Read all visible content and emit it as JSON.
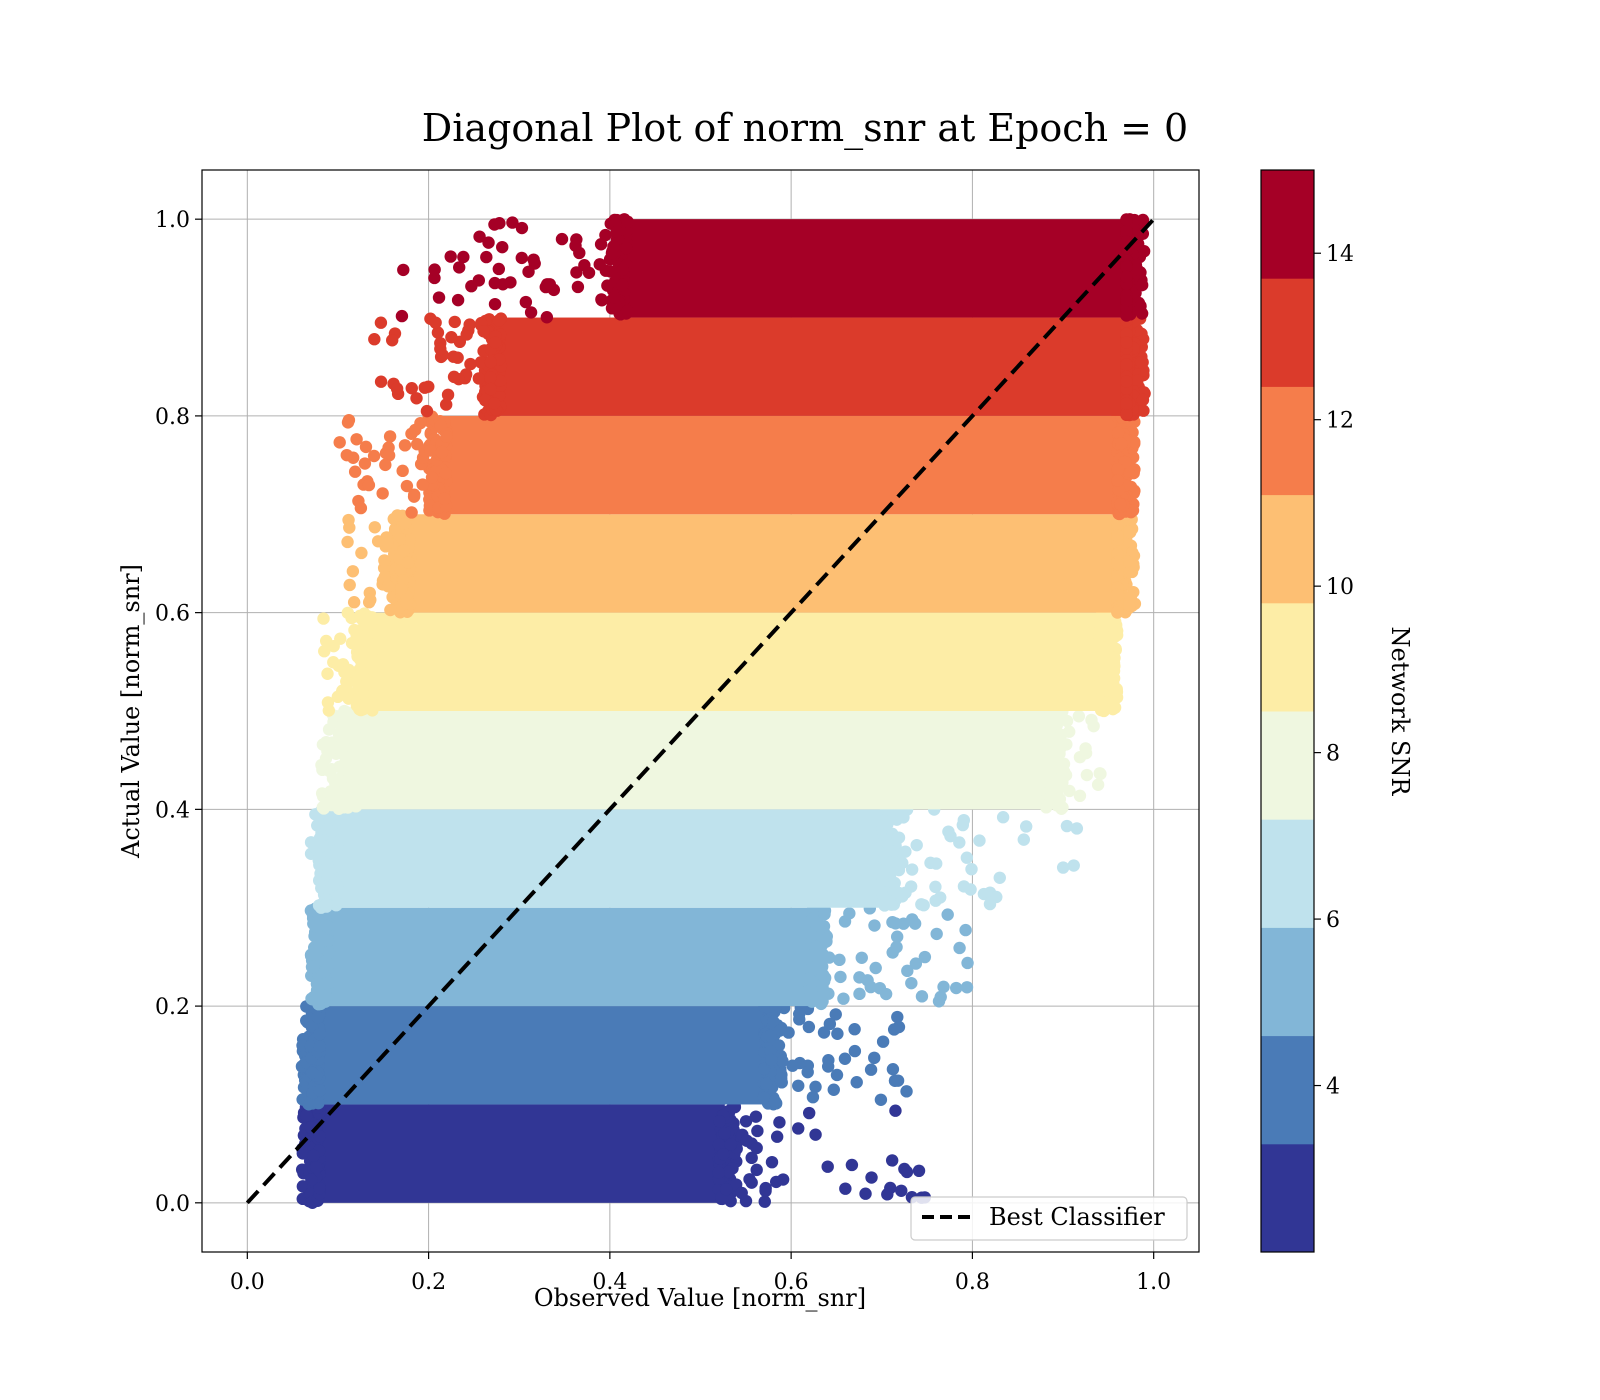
{
  "chart_data": {
    "type": "scatter",
    "title": "Diagonal Plot of norm_snr at Epoch = 0",
    "xlabel": "Observed Value [norm_snr]",
    "ylabel": "Actual Value [norm_snr]",
    "xlim": [
      -0.05,
      1.05
    ],
    "ylim": [
      -0.05,
      1.05
    ],
    "x_ticks": [
      "0.0",
      "0.2",
      "0.4",
      "0.6",
      "0.8",
      "1.0"
    ],
    "y_ticks": [
      "0.0",
      "0.2",
      "0.4",
      "0.6",
      "0.8",
      "1.0"
    ],
    "grid": true,
    "legend": {
      "entries": [
        "Best Classifier"
      ],
      "placement": "lower-right"
    },
    "reference_line": {
      "label": "Best Classifier",
      "style": "dashed",
      "color": "#000000",
      "x": [
        0,
        1
      ],
      "y": [
        0,
        1
      ]
    },
    "colorbar": {
      "label": "Network SNR",
      "range": [
        2,
        15
      ],
      "ticks": [
        "4",
        "6",
        "8",
        "10",
        "12",
        "14"
      ],
      "bands": [
        {
          "snr": [
            2,
            3.3
          ],
          "color": "#313695"
        },
        {
          "snr": [
            3.3,
            4.6
          ],
          "color": "#4a7bb7"
        },
        {
          "snr": [
            4.6,
            5.9
          ],
          "color": "#82b6d7"
        },
        {
          "snr": [
            5.9,
            7.2
          ],
          "color": "#bfe2ed"
        },
        {
          "snr": [
            7.2,
            8.5
          ],
          "color": "#eff7e0"
        },
        {
          "snr": [
            8.5,
            9.8
          ],
          "color": "#fdeda6"
        },
        {
          "snr": [
            9.8,
            11.1
          ],
          "color": "#fdbf73"
        },
        {
          "snr": [
            11.1,
            12.4
          ],
          "color": "#f57d4b"
        },
        {
          "snr": [
            12.4,
            13.7
          ],
          "color": "#db3b2b"
        },
        {
          "snr": [
            13.7,
            15
          ],
          "color": "#a50026"
        }
      ]
    },
    "series": [
      {
        "actual_range": [
          0.0,
          0.1
        ],
        "color": "#313695",
        "dense_observed": [
          0.08,
          0.52
        ],
        "spread_observed": [
          0.07,
          0.76
        ]
      },
      {
        "actual_range": [
          0.1,
          0.2
        ],
        "color": "#4a7bb7",
        "dense_observed": [
          0.08,
          0.57
        ],
        "spread_observed": [
          0.07,
          0.73
        ]
      },
      {
        "actual_range": [
          0.2,
          0.3
        ],
        "color": "#82b6d7",
        "dense_observed": [
          0.09,
          0.62
        ],
        "spread_observed": [
          0.07,
          0.8
        ]
      },
      {
        "actual_range": [
          0.3,
          0.4
        ],
        "color": "#bfe2ed",
        "dense_observed": [
          0.1,
          0.7
        ],
        "spread_observed": [
          0.07,
          0.92
        ]
      },
      {
        "actual_range": [
          0.4,
          0.5
        ],
        "color": "#eff7e0",
        "dense_observed": [
          0.12,
          0.88
        ],
        "spread_observed": [
          0.08,
          0.95
        ]
      },
      {
        "actual_range": [
          0.5,
          0.6
        ],
        "color": "#fdeda6",
        "dense_observed": [
          0.14,
          0.94
        ],
        "spread_observed": [
          0.08,
          0.96
        ]
      },
      {
        "actual_range": [
          0.6,
          0.7
        ],
        "color": "#fdbf73",
        "dense_observed": [
          0.18,
          0.96
        ],
        "spread_observed": [
          0.11,
          0.96
        ]
      },
      {
        "actual_range": [
          0.7,
          0.8
        ],
        "color": "#f57d4b",
        "dense_observed": [
          0.22,
          0.96
        ],
        "spread_observed": [
          0.1,
          0.97
        ]
      },
      {
        "actual_range": [
          0.8,
          0.9
        ],
        "color": "#db3b2b",
        "dense_observed": [
          0.28,
          0.97
        ],
        "spread_observed": [
          0.14,
          0.97
        ]
      },
      {
        "actual_range": [
          0.9,
          1.0
        ],
        "color": "#a50026",
        "dense_observed": [
          0.42,
          0.97
        ],
        "spread_observed": [
          0.16,
          0.97
        ]
      }
    ]
  }
}
